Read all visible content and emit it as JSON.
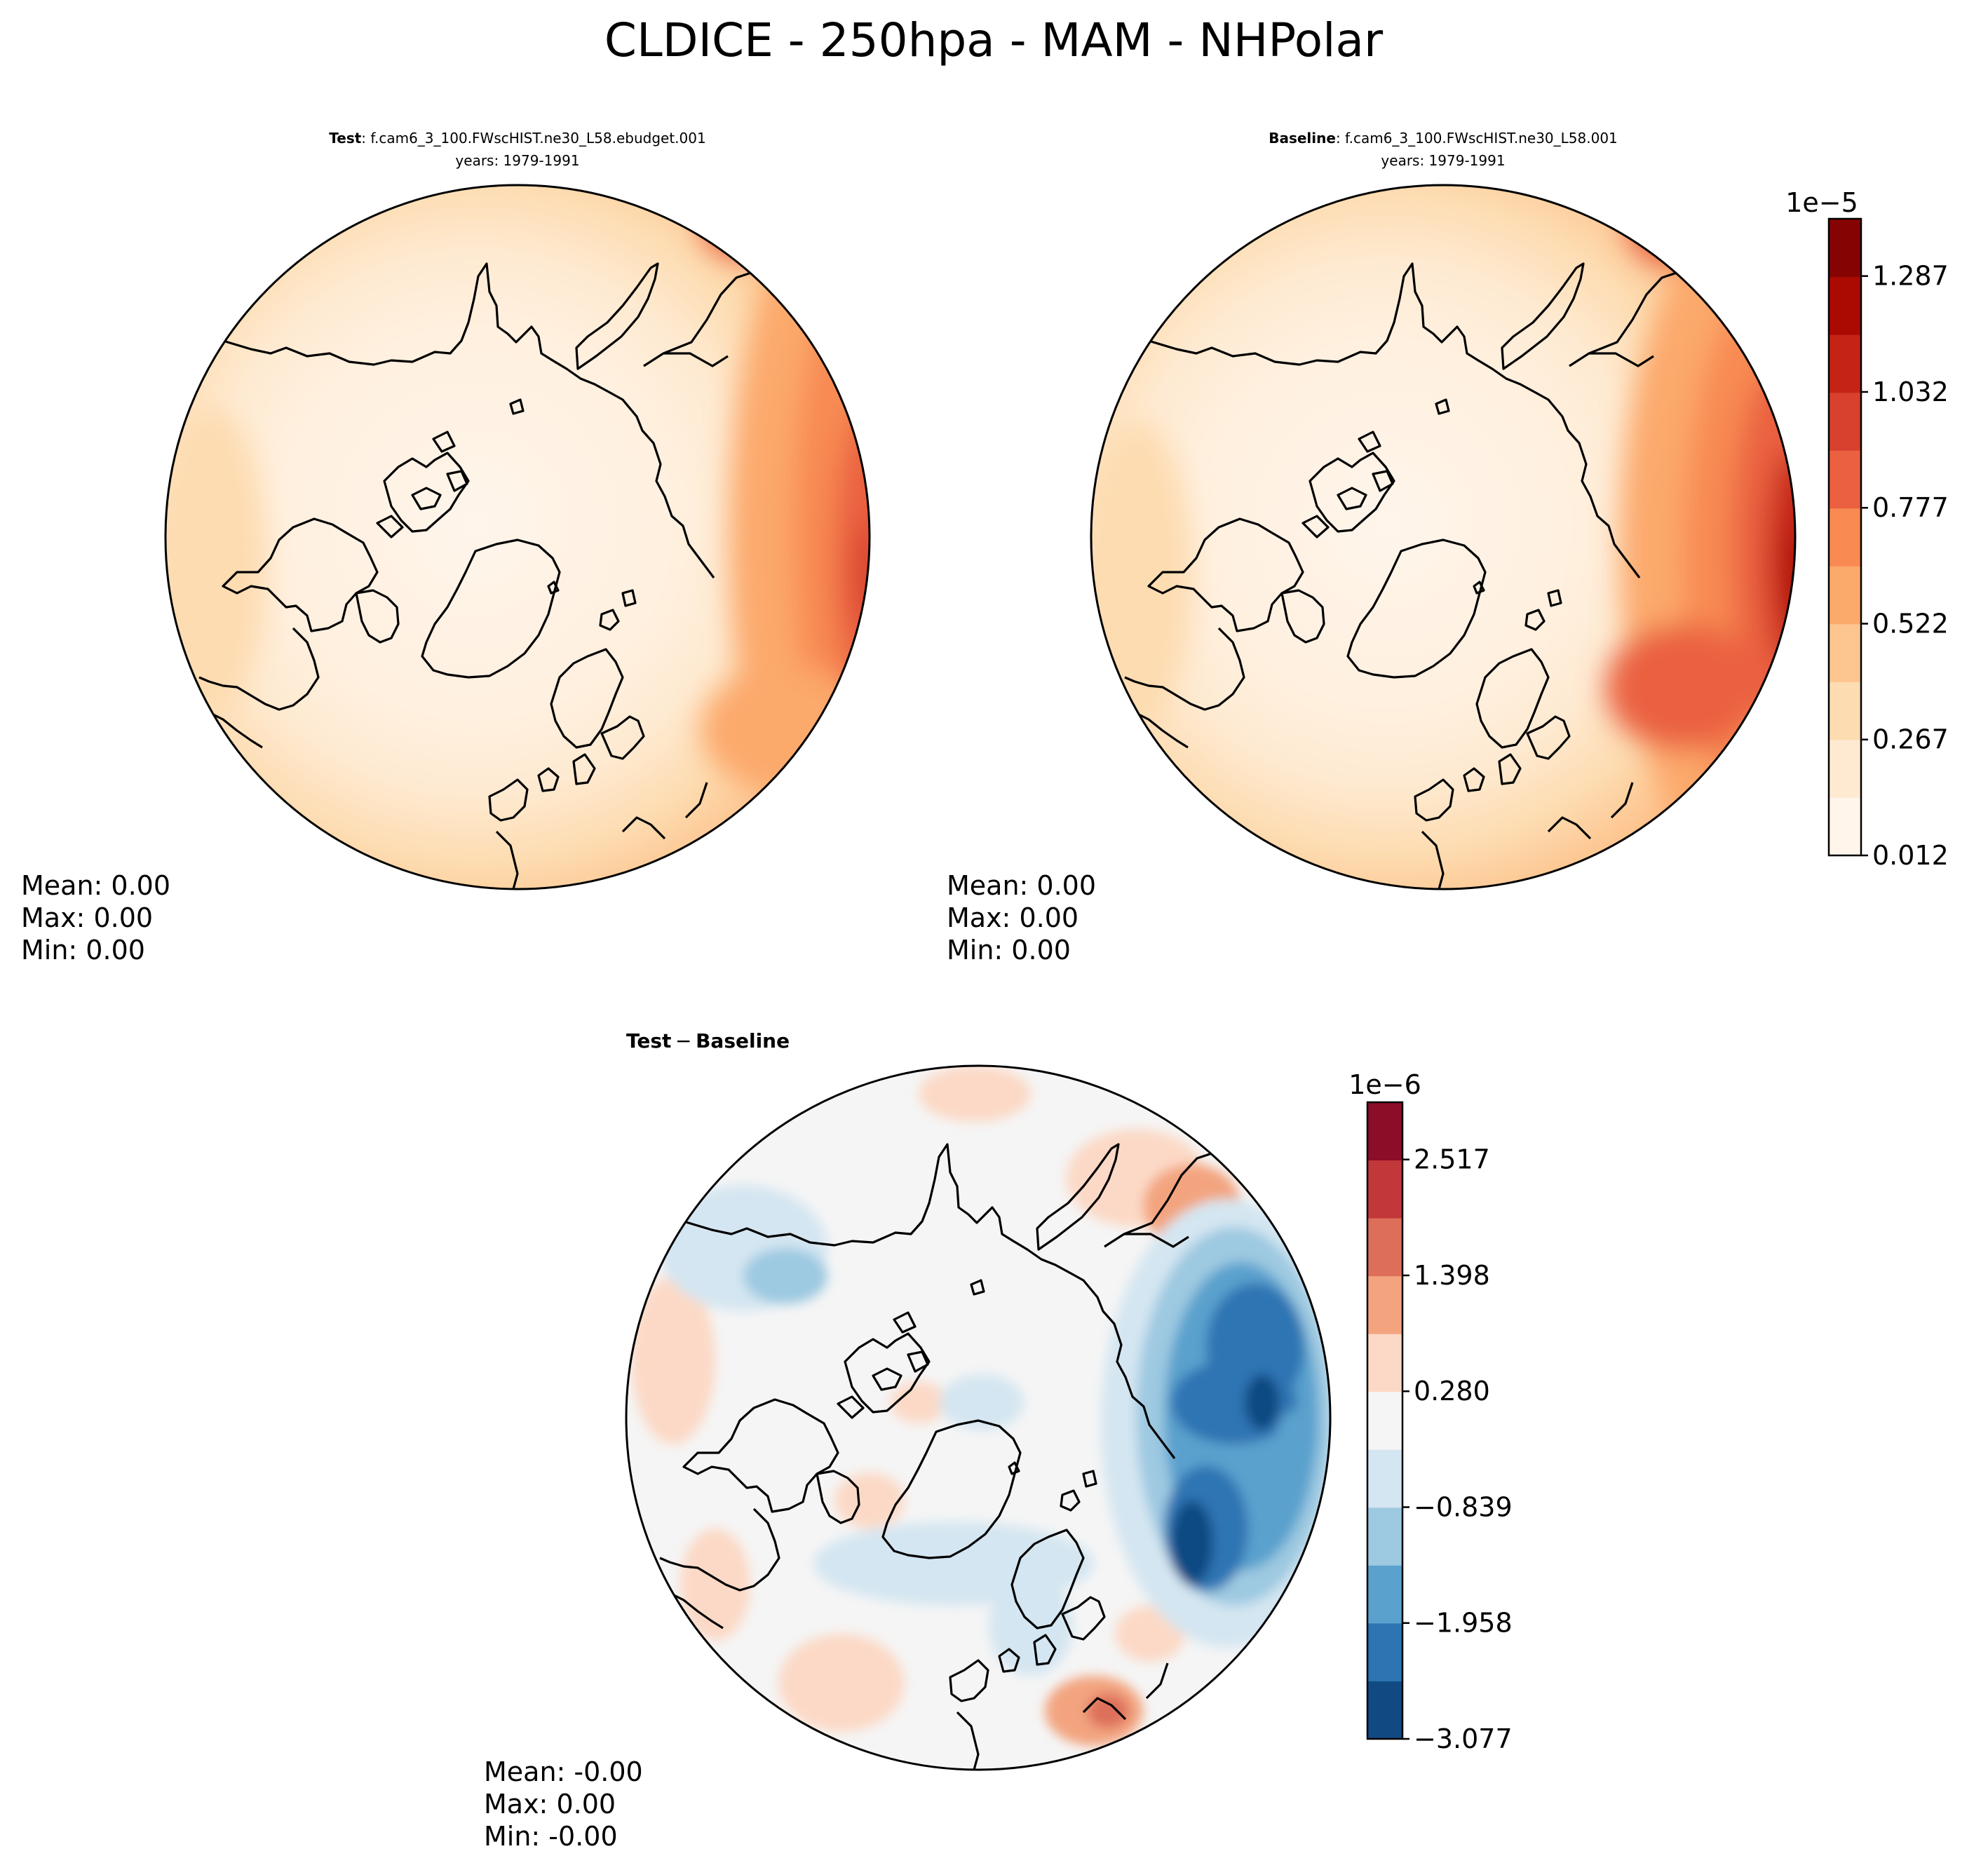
{
  "figure": {
    "title": "CLDICE - 250hpa - MAM - NHPolar"
  },
  "chart_data": [
    {
      "type": "heatmap",
      "projection": "north-polar-stereographic",
      "panel": "test",
      "title_bold": "Test",
      "title_rest": ": f.cam6_3_100.FWscHIST.ne30_L58.ebudget.001",
      "subtitle": "years: 1979-1991",
      "stats": {
        "mean": "Mean:  0.00",
        "max": "Max:  0.00",
        "min": "Min:  0.00"
      },
      "colormap": "OrRd",
      "shared_colorbar": "main"
    },
    {
      "type": "heatmap",
      "projection": "north-polar-stereographic",
      "panel": "baseline",
      "title_bold": "Baseline",
      "title_rest": ": f.cam6_3_100.FWscHIST.ne30_L58.001",
      "subtitle": "years: 1979-1991",
      "stats": {
        "mean": "Mean:  0.00",
        "max": "Max:  0.00",
        "min": "Min:  0.00"
      },
      "colormap": "OrRd",
      "shared_colorbar": "main"
    },
    {
      "type": "heatmap",
      "projection": "north-polar-stereographic",
      "panel": "difference",
      "title_bold": "Test",
      "title_rest": " − Baseline",
      "title_rest_bold": "Baseline",
      "stats": {
        "mean": "Mean: -0.00",
        "max": "Max:  0.00",
        "min": "Min: -0.00"
      },
      "colormap": "RdBu_r",
      "shared_colorbar": "diff"
    }
  ],
  "colorbars": {
    "main": {
      "exponent": "1e−5",
      "ticks": [
        "0.012",
        "0.267",
        "0.522",
        "0.777",
        "1.032",
        "1.287"
      ],
      "colors": [
        "#fff5eb",
        "#feead1",
        "#fddcb1",
        "#fdc590",
        "#fca96c",
        "#f88a52",
        "#ea6040",
        "#d7412e",
        "#c42316",
        "#aa0a02",
        "#860303"
      ]
    },
    "diff": {
      "exponent": "1e−6",
      "ticks": [
        "−3.077",
        "−1.958",
        "−0.839",
        "0.280",
        "1.398",
        "2.517"
      ],
      "colors": [
        "#114a82",
        "#2d74b3",
        "#5aa1cd",
        "#9dc9e1",
        "#d4e6f1",
        "#f5f5f5",
        "#fcd9c6",
        "#f3a47f",
        "#dd6f5a",
        "#c2373a",
        "#8b0d27"
      ]
    }
  }
}
